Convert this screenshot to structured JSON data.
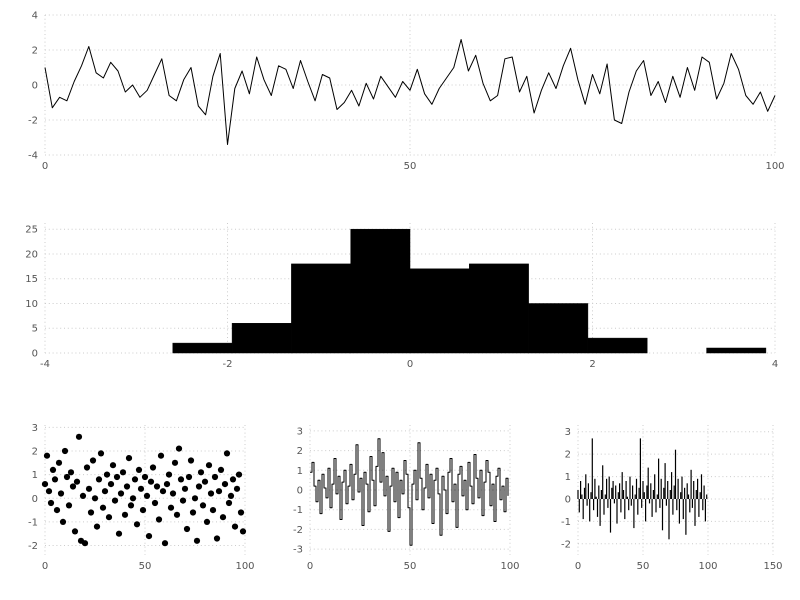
{
  "page": {
    "background": "#ffffff"
  },
  "style": {
    "grid_color": "#cccccc",
    "tick_label_color": "#555555",
    "series_color": "#000000"
  },
  "chart_data": [
    {
      "id": "line",
      "type": "line",
      "panel": "top-full-width",
      "xlim": [
        0,
        100
      ],
      "ylim": [
        -4,
        4
      ],
      "xticks": [
        0,
        50,
        100
      ],
      "yticks": [
        -4,
        -2,
        0,
        2,
        4
      ],
      "grid": true,
      "x_start": 0,
      "x_step": 1,
      "values": [
        1.0,
        -1.3,
        -0.7,
        -0.9,
        0.2,
        1.1,
        2.2,
        0.7,
        0.4,
        1.3,
        0.8,
        -0.4,
        0.0,
        -0.7,
        -0.3,
        0.6,
        1.5,
        -0.6,
        -0.9,
        0.3,
        1.0,
        -1.2,
        -1.7,
        0.5,
        1.8,
        -3.4,
        -0.2,
        0.8,
        -0.5,
        1.6,
        0.3,
        -0.6,
        1.1,
        0.9,
        -0.2,
        1.4,
        0.2,
        -0.9,
        0.6,
        0.4,
        -1.4,
        -1.0,
        -0.3,
        -1.2,
        0.1,
        -0.8,
        0.5,
        -0.1,
        -0.7,
        0.2,
        -0.3,
        0.9,
        -0.5,
        -1.1,
        -0.2,
        0.4,
        1.0,
        2.6,
        0.8,
        1.7,
        0.1,
        -0.9,
        -0.6,
        1.5,
        1.6,
        -0.4,
        0.5,
        -1.6,
        -0.3,
        0.7,
        -0.2,
        1.1,
        2.1,
        0.3,
        -1.1,
        0.6,
        -0.5,
        1.2,
        -2.0,
        -2.2,
        -0.4,
        0.8,
        1.4,
        -0.6,
        0.2,
        -1.0,
        0.5,
        -0.7,
        1.0,
        -0.3,
        1.6,
        1.3,
        -0.8,
        0.1,
        1.8,
        0.9,
        -0.6,
        -1.1,
        -0.4,
        -1.5,
        -0.6
      ]
    },
    {
      "id": "hist",
      "type": "histogram",
      "panel": "middle-full-width",
      "xlim": [
        -4,
        4
      ],
      "ylim": [
        0,
        26.25
      ],
      "xticks": [
        -4,
        -2,
        0,
        2,
        4
      ],
      "yticks": [
        0,
        5,
        10,
        15,
        20,
        25
      ],
      "grid": true,
      "bin_edges": [
        -2.6,
        -1.95,
        -1.3,
        -0.65,
        0.0,
        0.65,
        1.3,
        1.95,
        2.6,
        3.25,
        3.9
      ],
      "counts": [
        2,
        6,
        18,
        25,
        17,
        18,
        10,
        3,
        0,
        1
      ]
    },
    {
      "id": "scatter",
      "type": "scatter",
      "panel": "bottom-left",
      "xlim": [
        0,
        100
      ],
      "ylim": [
        -2.4,
        3.1
      ],
      "xticks": [
        0,
        50,
        100
      ],
      "yticks": [
        -2,
        -1,
        0,
        1,
        2,
        3
      ],
      "grid": true,
      "x_start": 0,
      "x_step": 1,
      "values": [
        0.6,
        1.8,
        0.3,
        -0.2,
        1.2,
        0.8,
        -0.5,
        1.5,
        0.2,
        -1.0,
        2.0,
        0.9,
        -0.3,
        1.1,
        0.5,
        -1.4,
        0.7,
        2.6,
        -1.8,
        0.1,
        -1.9,
        1.3,
        0.4,
        -0.6,
        1.6,
        0.0,
        -1.2,
        0.8,
        1.9,
        -0.4,
        0.3,
        1.0,
        -0.8,
        0.6,
        1.4,
        -0.1,
        0.9,
        -1.5,
        0.2,
        1.1,
        -0.7,
        0.5,
        1.7,
        -0.3,
        0.0,
        0.8,
        -1.1,
        1.2,
        0.4,
        -0.5,
        0.9,
        0.1,
        -1.6,
        0.7,
        1.3,
        -0.2,
        0.5,
        -0.9,
        1.8,
        0.3,
        -1.9,
        0.6,
        1.0,
        -0.4,
        0.2,
        1.5,
        -0.7,
        2.1,
        0.8,
        -0.1,
        0.4,
        -1.3,
        0.9,
        1.6,
        -0.6,
        0.0,
        -1.8,
        0.5,
        1.1,
        -0.3,
        0.7,
        -1.0,
        1.4,
        0.2,
        -0.5,
        0.9,
        -1.7,
        0.3,
        1.2,
        -0.8,
        0.6,
        1.9,
        -0.2,
        0.1,
        0.8,
        -1.2,
        0.4,
        1.0,
        -0.6,
        -1.4
      ]
    },
    {
      "id": "step",
      "type": "step",
      "panel": "bottom-middle",
      "xlim": [
        0,
        100
      ],
      "ylim": [
        -3.3,
        3.3
      ],
      "xticks": [
        0,
        50,
        100
      ],
      "yticks": [
        -3,
        -2,
        -1,
        0,
        1,
        2,
        3
      ],
      "grid": true,
      "x_start": 0,
      "x_step": 1,
      "values": [
        0.9,
        1.4,
        0.2,
        -0.6,
        0.5,
        -1.2,
        0.8,
        0.1,
        -0.4,
        1.1,
        -0.9,
        0.3,
        1.6,
        -0.2,
        0.7,
        -1.5,
        0.4,
        1.0,
        -0.7,
        0.2,
        1.3,
        -0.5,
        0.8,
        2.3,
        -0.1,
        0.6,
        -1.8,
        0.9,
        0.3,
        -1.1,
        1.7,
        0.5,
        -0.8,
        1.2,
        2.6,
        0.4,
        1.9,
        -0.3,
        0.7,
        -2.1,
        0.2,
        1.1,
        -0.6,
        0.9,
        -1.4,
        0.5,
        -0.2,
        1.5,
        0.8,
        -0.9,
        -2.8,
        0.3,
        1.0,
        -0.5,
        2.4,
        0.6,
        -1.0,
        0.1,
        1.3,
        -0.4,
        0.8,
        -1.7,
        0.5,
        1.1,
        -0.2,
        -2.3,
        0.7,
        0.0,
        -1.2,
        0.9,
        1.6,
        -0.6,
        0.3,
        -1.9,
        0.8,
        1.2,
        -0.3,
        0.5,
        -1.0,
        1.4,
        0.2,
        -0.7,
        1.8,
        0.6,
        -0.4,
        1.0,
        -1.3,
        0.4,
        1.5,
        0.9,
        -0.8,
        0.3,
        -1.6,
        0.7,
        1.1,
        -0.5,
        0.2,
        -1.1,
        0.6,
        -0.3
      ]
    },
    {
      "id": "stem",
      "type": "stem",
      "panel": "bottom-right",
      "xlim": [
        0,
        150
      ],
      "ylim": [
        -2.5,
        3.3
      ],
      "xticks": [
        0,
        50,
        100,
        150
      ],
      "yticks": [
        -2,
        -1,
        0,
        1,
        2,
        3
      ],
      "grid": true,
      "x_start": 0,
      "x_step": 1,
      "values": [
        0.4,
        -0.6,
        0.8,
        0.2,
        -0.9,
        0.5,
        1.1,
        -0.3,
        0.7,
        -1.0,
        0.3,
        2.7,
        -0.5,
        0.9,
        0.1,
        -0.8,
        0.6,
        -1.2,
        0.4,
        1.5,
        -0.7,
        0.2,
        0.9,
        -0.4,
        1.0,
        -1.5,
        0.5,
        0.8,
        -0.2,
        0.6,
        -1.1,
        0.3,
        0.7,
        -0.6,
        1.2,
        0.4,
        -0.9,
        0.8,
        0.1,
        -0.5,
        1.0,
        -0.3,
        0.6,
        -1.3,
        0.2,
        0.9,
        -0.7,
        0.5,
        2.7,
        -0.4,
        0.8,
        0.3,
        -1.0,
        0.6,
        1.4,
        -0.2,
        0.7,
        -0.8,
        0.4,
        1.1,
        -0.6,
        0.2,
        1.8,
        -0.4,
        0.9,
        -1.4,
        0.5,
        1.6,
        -0.3,
        0.8,
        -1.8,
        0.4,
        1.2,
        -0.7,
        0.6,
        2.2,
        -0.5,
        0.9,
        -1.1,
        0.3,
        1.0,
        -0.9,
        0.5,
        -1.6,
        0.7,
        0.2,
        -0.6,
        1.3,
        -0.4,
        0.8,
        -1.2,
        0.4,
        0.9,
        -0.8,
        0.3,
        1.1,
        -0.5,
        0.6,
        -1.0,
        0.2
      ]
    }
  ]
}
